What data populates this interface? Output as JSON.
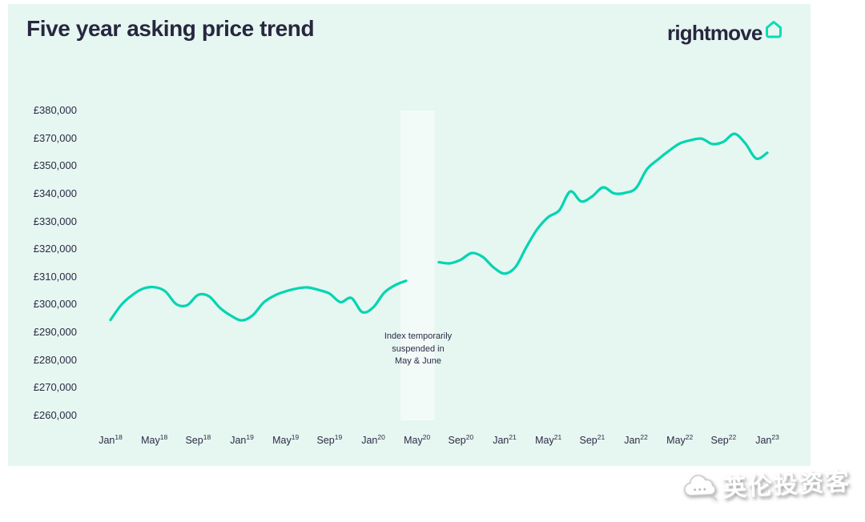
{
  "header": {
    "title": "Five year asking price trend",
    "logo_text": "rightmove"
  },
  "colors": {
    "panel_background": "#e6f6f1",
    "navy_text": "#27273f",
    "line_teal": "#00d5b0",
    "logo_teal": "#00deb6",
    "suspended_band": "#f2faf7"
  },
  "annotation": {
    "lines": [
      "Index temporarily",
      "suspended in",
      "May & June"
    ]
  },
  "watermark": {
    "text": "英伦投资客",
    "icon": "cloud-logo"
  },
  "chart_data": {
    "type": "line",
    "title": "Five year asking price trend",
    "xlabel": "",
    "ylabel": "",
    "grid": false,
    "legend": "none",
    "line_color": "#00d5b0",
    "y_axis_labels": [
      "£380,000",
      "£370,000",
      "£350,000",
      "£340,000",
      "£330,000",
      "£320,000",
      "£310,000",
      "£300,000",
      "£290,000",
      "£280,000",
      "£270,000",
      "£260,000"
    ],
    "y_axis_values": [
      380000,
      370000,
      350000,
      340000,
      330000,
      320000,
      310000,
      300000,
      290000,
      280000,
      270000,
      260000
    ],
    "x_tick_labels": [
      {
        "month": "Jan",
        "year": "18"
      },
      {
        "month": "May",
        "year": "18"
      },
      {
        "month": "Sep",
        "year": "18"
      },
      {
        "month": "Jan",
        "year": "19"
      },
      {
        "month": "May",
        "year": "19"
      },
      {
        "month": "Sep",
        "year": "19"
      },
      {
        "month": "Jan",
        "year": "20"
      },
      {
        "month": "May",
        "year": "20"
      },
      {
        "month": "Sep",
        "year": "20"
      },
      {
        "month": "Jan",
        "year": "21"
      },
      {
        "month": "May",
        "year": "21"
      },
      {
        "month": "Sep",
        "year": "21"
      },
      {
        "month": "Jan",
        "year": "22"
      },
      {
        "month": "May",
        "year": "22"
      },
      {
        "month": "Sep",
        "year": "22"
      },
      {
        "month": "Jan",
        "year": "23"
      }
    ],
    "months": [
      "Jan-18",
      "Feb-18",
      "Mar-18",
      "Apr-18",
      "May-18",
      "Jun-18",
      "Jul-18",
      "Aug-18",
      "Sep-18",
      "Oct-18",
      "Nov-18",
      "Dec-18",
      "Jan-19",
      "Feb-19",
      "Mar-19",
      "Apr-19",
      "May-19",
      "Jun-19",
      "Jul-19",
      "Aug-19",
      "Sep-19",
      "Oct-19",
      "Nov-19",
      "Dec-19",
      "Jan-20",
      "Feb-20",
      "Mar-20",
      "Apr-20",
      "May-20",
      "Jun-20",
      "Jul-20",
      "Aug-20",
      "Sep-20",
      "Oct-20",
      "Nov-20",
      "Dec-20",
      "Jan-21",
      "Feb-21",
      "Mar-21",
      "Apr-21",
      "May-21",
      "Jun-21",
      "Jul-21",
      "Aug-21",
      "Sep-21",
      "Oct-21",
      "Nov-21",
      "Dec-21",
      "Jan-22",
      "Feb-22",
      "Mar-22",
      "Apr-22",
      "May-22",
      "Jun-22",
      "Jul-22",
      "Aug-22",
      "Sep-22",
      "Oct-22",
      "Nov-22",
      "Dec-22",
      "Jan-23"
    ],
    "values": [
      294500,
      300000,
      303500,
      305800,
      306300,
      304800,
      300200,
      299800,
      303500,
      303000,
      298800,
      296000,
      294300,
      296200,
      300800,
      303300,
      304800,
      305800,
      306200,
      305300,
      304000,
      300900,
      302400,
      297300,
      299000,
      304300,
      307000,
      308600,
      null,
      null,
      315300,
      314900,
      316200,
      318600,
      317200,
      313400,
      311200,
      313600,
      320800,
      327300,
      331600,
      334000,
      340800,
      337200,
      339000,
      342300,
      340100,
      340300,
      342000,
      348800,
      354600,
      360800,
      366200,
      368600,
      369700,
      365800,
      367500,
      371600,
      366200,
      355300,
      359500
    ],
    "suspended_band_months": [
      "Apr-20",
      "Jun-20"
    ],
    "annotations": [
      "Index temporarily suspended in May & June"
    ]
  }
}
